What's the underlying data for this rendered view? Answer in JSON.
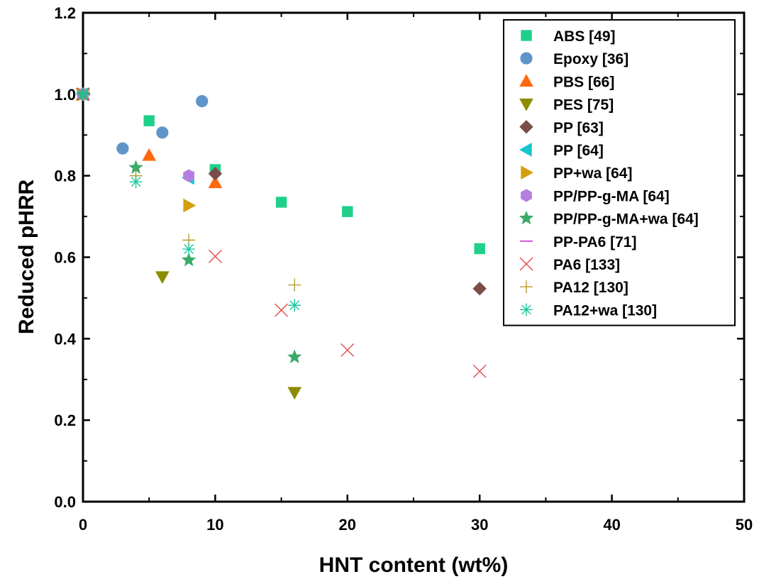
{
  "chart_data": {
    "type": "scatter",
    "title": "",
    "xlabel": "HNT content (wt%)",
    "ylabel": "Reduced pHRR",
    "xlim": [
      0,
      50
    ],
    "ylim": [
      0,
      1.2
    ],
    "xticks": [
      "0",
      "10",
      "20",
      "30",
      "40",
      "50"
    ],
    "yticks": [
      "0.0",
      "0.2",
      "0.4",
      "0.6",
      "0.8",
      "1.0",
      "1.2"
    ],
    "grid": false,
    "legend_position": "top-right",
    "series": [
      {
        "name": "ABS [49]",
        "marker": "square",
        "color": "#1fd08a",
        "points": [
          [
            0,
            1.0
          ],
          [
            5,
            0.935
          ],
          [
            10,
            0.815
          ],
          [
            15,
            0.735
          ],
          [
            20,
            0.712
          ],
          [
            30,
            0.621
          ]
        ]
      },
      {
        "name": "Epoxy [36]",
        "marker": "circle",
        "color": "#5f95c9",
        "points": [
          [
            0,
            1.0
          ],
          [
            3,
            0.867
          ],
          [
            6,
            0.906
          ],
          [
            9,
            0.983
          ]
        ]
      },
      {
        "name": "PBS [66]",
        "marker": "triangle-up",
        "color": "#ff6a0e",
        "points": [
          [
            0,
            1.0
          ],
          [
            5,
            0.85
          ],
          [
            10,
            0.783
          ]
        ]
      },
      {
        "name": "PES [75]",
        "marker": "triangle-down",
        "color": "#8c8c00",
        "points": [
          [
            0,
            1.0
          ],
          [
            6,
            0.552
          ],
          [
            16,
            0.268
          ]
        ]
      },
      {
        "name": "PP [63]",
        "marker": "diamond",
        "color": "#7b4d48",
        "points": [
          [
            0,
            1.0
          ],
          [
            10,
            0.805
          ],
          [
            30,
            0.523
          ]
        ]
      },
      {
        "name": "PP [64]",
        "marker": "triangle-left",
        "color": "#14c6cc",
        "points": [
          [
            0,
            1.0
          ],
          [
            8,
            0.795
          ]
        ]
      },
      {
        "name": "PP+wa [64]",
        "marker": "triangle-right",
        "color": "#d2a00f",
        "points": [
          [
            0,
            1.0
          ],
          [
            8,
            0.727
          ]
        ]
      },
      {
        "name": "PP/PP-g-MA [64]",
        "marker": "hexagon",
        "color": "#b57fe1",
        "points": [
          [
            0,
            1.0
          ],
          [
            8,
            0.8
          ]
        ]
      },
      {
        "name": "PP/PP-g-MA+wa [64]",
        "marker": "star",
        "color": "#3aab6a",
        "points": [
          [
            0,
            1.0
          ],
          [
            4,
            0.82
          ],
          [
            8,
            0.593
          ],
          [
            16,
            0.355
          ]
        ]
      },
      {
        "name": "PP-PA6 [71]",
        "marker": "dash",
        "color": "#cc33cc",
        "points": [
          [
            0,
            1.0
          ]
        ]
      },
      {
        "name": "PA6 [133]",
        "marker": "x",
        "color": "#e84a4a",
        "points": [
          [
            0,
            1.0
          ],
          [
            10,
            0.602
          ],
          [
            15,
            0.47
          ],
          [
            20,
            0.372
          ],
          [
            30,
            0.32
          ]
        ]
      },
      {
        "name": "PA12 [130]",
        "marker": "plus",
        "color": "#b59d2a",
        "points": [
          [
            0,
            1.0
          ],
          [
            4,
            0.8
          ],
          [
            8,
            0.642
          ],
          [
            16,
            0.532
          ]
        ]
      },
      {
        "name": "PA12+wa [130]",
        "marker": "asterisk",
        "color": "#1ec7a0",
        "points": [
          [
            0,
            1.0
          ],
          [
            4,
            0.785
          ],
          [
            8,
            0.62
          ],
          [
            16,
            0.482
          ]
        ]
      }
    ]
  }
}
